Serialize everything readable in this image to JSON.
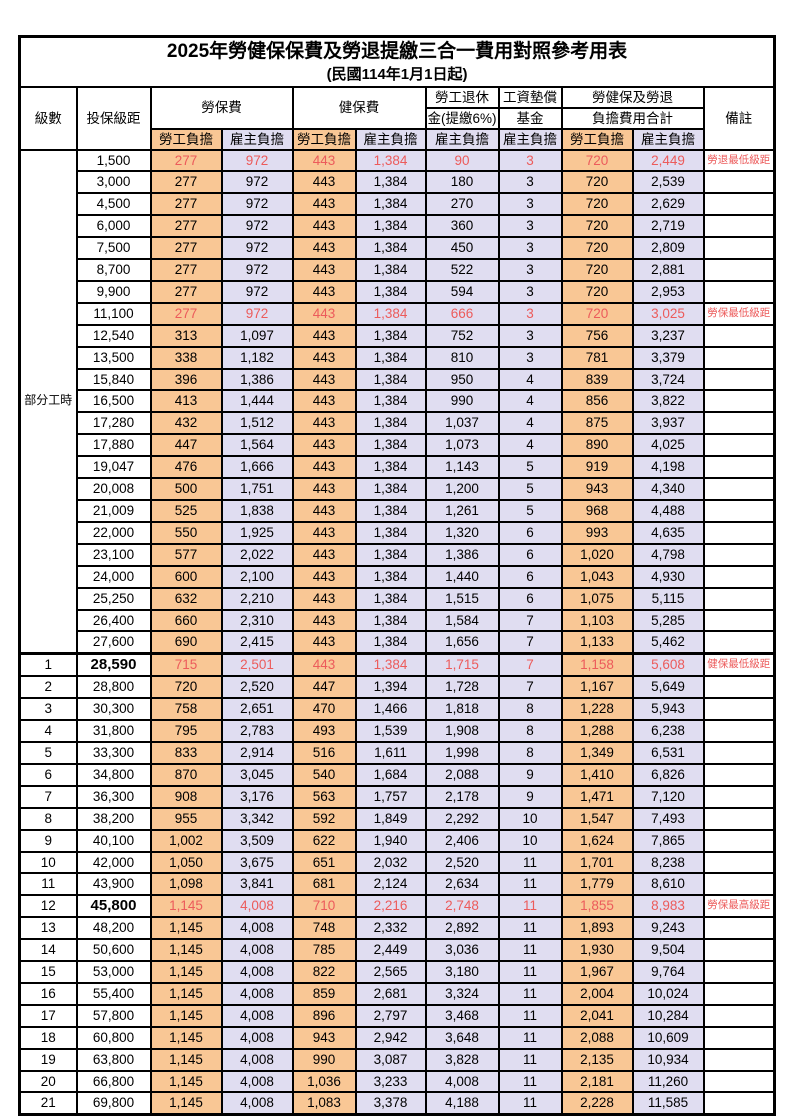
{
  "title": "2025年勞健保保費及勞退提繳三合一費用對照參考用表",
  "subtitle": "(民國114年1月1日起)",
  "header": {
    "level": "級數",
    "bracket": "投保級距",
    "labor_insurance": "勞保費",
    "health_insurance": "健保費",
    "pension_line1": "勞工退休",
    "pension_line2": "金(提繳6%)",
    "wage_fund_line1": "工資墊償",
    "wage_fund_line2": "基金",
    "total_line1": "勞健保及勞退",
    "total_line2": "負擔費用合計",
    "note": "備註",
    "employee": "勞工負擔",
    "employer": "雇主負擔"
  },
  "part_time_label": "部分工時",
  "part_time_rowspan": 23,
  "colors": {
    "employee_bg": "#F9C795",
    "employer_bg": "#E0DDF1",
    "highlight_text": "#EC5B5B",
    "border": "#000000"
  },
  "notes_legend": [
    "勞退最低級距",
    "勞保最低級距",
    "健保最低級距",
    "勞保最高級距"
  ],
  "rows": [
    {
      "level": "",
      "bracket": "1,500",
      "li_emp": "277",
      "li_er": "972",
      "hi_emp": "443",
      "hi_er": "1,384",
      "pension": "90",
      "fund": "3",
      "tot_emp": "720",
      "tot_er": "2,449",
      "note": "勞退最低級距",
      "red": true
    },
    {
      "level": "",
      "bracket": "3,000",
      "li_emp": "277",
      "li_er": "972",
      "hi_emp": "443",
      "hi_er": "1,384",
      "pension": "180",
      "fund": "3",
      "tot_emp": "720",
      "tot_er": "2,539",
      "note": ""
    },
    {
      "level": "",
      "bracket": "4,500",
      "li_emp": "277",
      "li_er": "972",
      "hi_emp": "443",
      "hi_er": "1,384",
      "pension": "270",
      "fund": "3",
      "tot_emp": "720",
      "tot_er": "2,629",
      "note": ""
    },
    {
      "level": "",
      "bracket": "6,000",
      "li_emp": "277",
      "li_er": "972",
      "hi_emp": "443",
      "hi_er": "1,384",
      "pension": "360",
      "fund": "3",
      "tot_emp": "720",
      "tot_er": "2,719",
      "note": ""
    },
    {
      "level": "",
      "bracket": "7,500",
      "li_emp": "277",
      "li_er": "972",
      "hi_emp": "443",
      "hi_er": "1,384",
      "pension": "450",
      "fund": "3",
      "tot_emp": "720",
      "tot_er": "2,809",
      "note": ""
    },
    {
      "level": "",
      "bracket": "8,700",
      "li_emp": "277",
      "li_er": "972",
      "hi_emp": "443",
      "hi_er": "1,384",
      "pension": "522",
      "fund": "3",
      "tot_emp": "720",
      "tot_er": "2,881",
      "note": ""
    },
    {
      "level": "",
      "bracket": "9,900",
      "li_emp": "277",
      "li_er": "972",
      "hi_emp": "443",
      "hi_er": "1,384",
      "pension": "594",
      "fund": "3",
      "tot_emp": "720",
      "tot_er": "2,953",
      "note": ""
    },
    {
      "level": "",
      "bracket": "11,100",
      "li_emp": "277",
      "li_er": "972",
      "hi_emp": "443",
      "hi_er": "1,384",
      "pension": "666",
      "fund": "3",
      "tot_emp": "720",
      "tot_er": "3,025",
      "note": "勞保最低級距",
      "red": true
    },
    {
      "level": "",
      "bracket": "12,540",
      "li_emp": "313",
      "li_er": "1,097",
      "hi_emp": "443",
      "hi_er": "1,384",
      "pension": "752",
      "fund": "3",
      "tot_emp": "756",
      "tot_er": "3,237",
      "note": ""
    },
    {
      "level": "",
      "bracket": "13,500",
      "li_emp": "338",
      "li_er": "1,182",
      "hi_emp": "443",
      "hi_er": "1,384",
      "pension": "810",
      "fund": "3",
      "tot_emp": "781",
      "tot_er": "3,379",
      "note": ""
    },
    {
      "level": "",
      "bracket": "15,840",
      "li_emp": "396",
      "li_er": "1,386",
      "hi_emp": "443",
      "hi_er": "1,384",
      "pension": "950",
      "fund": "4",
      "tot_emp": "839",
      "tot_er": "3,724",
      "note": ""
    },
    {
      "level": "",
      "bracket": "16,500",
      "li_emp": "413",
      "li_er": "1,444",
      "hi_emp": "443",
      "hi_er": "1,384",
      "pension": "990",
      "fund": "4",
      "tot_emp": "856",
      "tot_er": "3,822",
      "note": ""
    },
    {
      "level": "",
      "bracket": "17,280",
      "li_emp": "432",
      "li_er": "1,512",
      "hi_emp": "443",
      "hi_er": "1,384",
      "pension": "1,037",
      "fund": "4",
      "tot_emp": "875",
      "tot_er": "3,937",
      "note": ""
    },
    {
      "level": "",
      "bracket": "17,880",
      "li_emp": "447",
      "li_er": "1,564",
      "hi_emp": "443",
      "hi_er": "1,384",
      "pension": "1,073",
      "fund": "4",
      "tot_emp": "890",
      "tot_er": "4,025",
      "note": ""
    },
    {
      "level": "",
      "bracket": "19,047",
      "li_emp": "476",
      "li_er": "1,666",
      "hi_emp": "443",
      "hi_er": "1,384",
      "pension": "1,143",
      "fund": "5",
      "tot_emp": "919",
      "tot_er": "4,198",
      "note": ""
    },
    {
      "level": "",
      "bracket": "20,008",
      "li_emp": "500",
      "li_er": "1,751",
      "hi_emp": "443",
      "hi_er": "1,384",
      "pension": "1,200",
      "fund": "5",
      "tot_emp": "943",
      "tot_er": "4,340",
      "note": ""
    },
    {
      "level": "",
      "bracket": "21,009",
      "li_emp": "525",
      "li_er": "1,838",
      "hi_emp": "443",
      "hi_er": "1,384",
      "pension": "1,261",
      "fund": "5",
      "tot_emp": "968",
      "tot_er": "4,488",
      "note": ""
    },
    {
      "level": "",
      "bracket": "22,000",
      "li_emp": "550",
      "li_er": "1,925",
      "hi_emp": "443",
      "hi_er": "1,384",
      "pension": "1,320",
      "fund": "6",
      "tot_emp": "993",
      "tot_er": "4,635",
      "note": ""
    },
    {
      "level": "",
      "bracket": "23,100",
      "li_emp": "577",
      "li_er": "2,022",
      "hi_emp": "443",
      "hi_er": "1,384",
      "pension": "1,386",
      "fund": "6",
      "tot_emp": "1,020",
      "tot_er": "4,798",
      "note": ""
    },
    {
      "level": "",
      "bracket": "24,000",
      "li_emp": "600",
      "li_er": "2,100",
      "hi_emp": "443",
      "hi_er": "1,384",
      "pension": "1,440",
      "fund": "6",
      "tot_emp": "1,043",
      "tot_er": "4,930",
      "note": ""
    },
    {
      "level": "",
      "bracket": "25,250",
      "li_emp": "632",
      "li_er": "2,210",
      "hi_emp": "443",
      "hi_er": "1,384",
      "pension": "1,515",
      "fund": "6",
      "tot_emp": "1,075",
      "tot_er": "5,115",
      "note": ""
    },
    {
      "level": "",
      "bracket": "26,400",
      "li_emp": "660",
      "li_er": "2,310",
      "hi_emp": "443",
      "hi_er": "1,384",
      "pension": "1,584",
      "fund": "7",
      "tot_emp": "1,103",
      "tot_er": "5,285",
      "note": ""
    },
    {
      "level": "",
      "bracket": "27,600",
      "li_emp": "690",
      "li_er": "2,415",
      "hi_emp": "443",
      "hi_er": "1,384",
      "pension": "1,656",
      "fund": "7",
      "tot_emp": "1,133",
      "tot_er": "5,462",
      "note": ""
    },
    {
      "level": "1",
      "bracket": "28,590",
      "li_emp": "715",
      "li_er": "2,501",
      "hi_emp": "443",
      "hi_er": "1,384",
      "pension": "1,715",
      "fund": "7",
      "tot_emp": "1,158",
      "tot_er": "5,608",
      "note": "健保最低級距",
      "red": true,
      "bold": true,
      "thick_top": true
    },
    {
      "level": "2",
      "bracket": "28,800",
      "li_emp": "720",
      "li_er": "2,520",
      "hi_emp": "447",
      "hi_er": "1,394",
      "pension": "1,728",
      "fund": "7",
      "tot_emp": "1,167",
      "tot_er": "5,649",
      "note": ""
    },
    {
      "level": "3",
      "bracket": "30,300",
      "li_emp": "758",
      "li_er": "2,651",
      "hi_emp": "470",
      "hi_er": "1,466",
      "pension": "1,818",
      "fund": "8",
      "tot_emp": "1,228",
      "tot_er": "5,943",
      "note": ""
    },
    {
      "level": "4",
      "bracket": "31,800",
      "li_emp": "795",
      "li_er": "2,783",
      "hi_emp": "493",
      "hi_er": "1,539",
      "pension": "1,908",
      "fund": "8",
      "tot_emp": "1,288",
      "tot_er": "6,238",
      "note": ""
    },
    {
      "level": "5",
      "bracket": "33,300",
      "li_emp": "833",
      "li_er": "2,914",
      "hi_emp": "516",
      "hi_er": "1,611",
      "pension": "1,998",
      "fund": "8",
      "tot_emp": "1,349",
      "tot_er": "6,531",
      "note": ""
    },
    {
      "level": "6",
      "bracket": "34,800",
      "li_emp": "870",
      "li_er": "3,045",
      "hi_emp": "540",
      "hi_er": "1,684",
      "pension": "2,088",
      "fund": "9",
      "tot_emp": "1,410",
      "tot_er": "6,826",
      "note": ""
    },
    {
      "level": "7",
      "bracket": "36,300",
      "li_emp": "908",
      "li_er": "3,176",
      "hi_emp": "563",
      "hi_er": "1,757",
      "pension": "2,178",
      "fund": "9",
      "tot_emp": "1,471",
      "tot_er": "7,120",
      "note": ""
    },
    {
      "level": "8",
      "bracket": "38,200",
      "li_emp": "955",
      "li_er": "3,342",
      "hi_emp": "592",
      "hi_er": "1,849",
      "pension": "2,292",
      "fund": "10",
      "tot_emp": "1,547",
      "tot_er": "7,493",
      "note": ""
    },
    {
      "level": "9",
      "bracket": "40,100",
      "li_emp": "1,002",
      "li_er": "3,509",
      "hi_emp": "622",
      "hi_er": "1,940",
      "pension": "2,406",
      "fund": "10",
      "tot_emp": "1,624",
      "tot_er": "7,865",
      "note": ""
    },
    {
      "level": "10",
      "bracket": "42,000",
      "li_emp": "1,050",
      "li_er": "3,675",
      "hi_emp": "651",
      "hi_er": "2,032",
      "pension": "2,520",
      "fund": "11",
      "tot_emp": "1,701",
      "tot_er": "8,238",
      "note": ""
    },
    {
      "level": "11",
      "bracket": "43,900",
      "li_emp": "1,098",
      "li_er": "3,841",
      "hi_emp": "681",
      "hi_er": "2,124",
      "pension": "2,634",
      "fund": "11",
      "tot_emp": "1,779",
      "tot_er": "8,610",
      "note": ""
    },
    {
      "level": "12",
      "bracket": "45,800",
      "li_emp": "1,145",
      "li_er": "4,008",
      "hi_emp": "710",
      "hi_er": "2,216",
      "pension": "2,748",
      "fund": "11",
      "tot_emp": "1,855",
      "tot_er": "8,983",
      "note": "勞保最高級距",
      "red": true,
      "bold": true
    },
    {
      "level": "13",
      "bracket": "48,200",
      "li_emp": "1,145",
      "li_er": "4,008",
      "hi_emp": "748",
      "hi_er": "2,332",
      "pension": "2,892",
      "fund": "11",
      "tot_emp": "1,893",
      "tot_er": "9,243",
      "note": ""
    },
    {
      "level": "14",
      "bracket": "50,600",
      "li_emp": "1,145",
      "li_er": "4,008",
      "hi_emp": "785",
      "hi_er": "2,449",
      "pension": "3,036",
      "fund": "11",
      "tot_emp": "1,930",
      "tot_er": "9,504",
      "note": ""
    },
    {
      "level": "15",
      "bracket": "53,000",
      "li_emp": "1,145",
      "li_er": "4,008",
      "hi_emp": "822",
      "hi_er": "2,565",
      "pension": "3,180",
      "fund": "11",
      "tot_emp": "1,967",
      "tot_er": "9,764",
      "note": ""
    },
    {
      "level": "16",
      "bracket": "55,400",
      "li_emp": "1,145",
      "li_er": "4,008",
      "hi_emp": "859",
      "hi_er": "2,681",
      "pension": "3,324",
      "fund": "11",
      "tot_emp": "2,004",
      "tot_er": "10,024",
      "note": ""
    },
    {
      "level": "17",
      "bracket": "57,800",
      "li_emp": "1,145",
      "li_er": "4,008",
      "hi_emp": "896",
      "hi_er": "2,797",
      "pension": "3,468",
      "fund": "11",
      "tot_emp": "2,041",
      "tot_er": "10,284",
      "note": ""
    },
    {
      "level": "18",
      "bracket": "60,800",
      "li_emp": "1,145",
      "li_er": "4,008",
      "hi_emp": "943",
      "hi_er": "2,942",
      "pension": "3,648",
      "fund": "11",
      "tot_emp": "2,088",
      "tot_er": "10,609",
      "note": ""
    },
    {
      "level": "19",
      "bracket": "63,800",
      "li_emp": "1,145",
      "li_er": "4,008",
      "hi_emp": "990",
      "hi_er": "3,087",
      "pension": "3,828",
      "fund": "11",
      "tot_emp": "2,135",
      "tot_er": "10,934",
      "note": ""
    },
    {
      "level": "20",
      "bracket": "66,800",
      "li_emp": "1,145",
      "li_er": "4,008",
      "hi_emp": "1,036",
      "hi_er": "3,233",
      "pension": "4,008",
      "fund": "11",
      "tot_emp": "2,181",
      "tot_er": "11,260",
      "note": ""
    },
    {
      "level": "21",
      "bracket": "69,800",
      "li_emp": "1,145",
      "li_er": "4,008",
      "hi_emp": "1,083",
      "hi_er": "3,378",
      "pension": "4,188",
      "fund": "11",
      "tot_emp": "2,228",
      "tot_er": "11,585",
      "note": ""
    }
  ]
}
